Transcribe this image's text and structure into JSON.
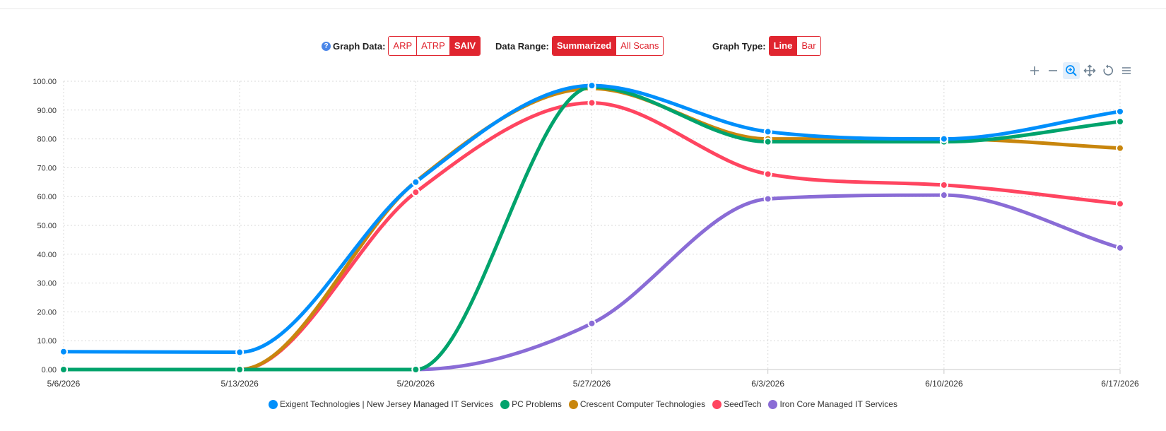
{
  "controls": {
    "graph_data": {
      "label": "Graph Data:",
      "help": "?",
      "options": [
        "ARP",
        "ATRP",
        "SAIV"
      ],
      "active": "SAIV"
    },
    "data_range": {
      "label": "Data Range:",
      "options": [
        "Summarized",
        "All Scans"
      ],
      "active": "Summarized"
    },
    "graph_type": {
      "label": "Graph Type:",
      "options": [
        "Line",
        "Bar"
      ],
      "active": "Line"
    }
  },
  "toolbar": [
    "zoom-in-icon",
    "zoom-out-icon",
    "selection-zoom-icon",
    "pan-icon",
    "reset-icon",
    "menu-icon"
  ],
  "colors": {
    "accent": "#e0252f",
    "grid": "#d9d9d9",
    "tool": "#6e8192",
    "tool_active": "#008ffb"
  },
  "chart_data": {
    "type": "line",
    "title": "",
    "xlabel": "",
    "ylabel": "",
    "categories": [
      "5/6/2026",
      "5/13/2026",
      "5/20/2026",
      "5/27/2026",
      "6/3/2026",
      "6/10/2026",
      "6/17/2026"
    ],
    "y_ticks": [
      "0.00",
      "10.00",
      "20.00",
      "30.00",
      "40.00",
      "50.00",
      "60.00",
      "70.00",
      "80.00",
      "90.00",
      "100.00"
    ],
    "ylim": [
      0,
      100
    ],
    "grid": true,
    "curve": "smooth",
    "legend_position": "bottom",
    "series": [
      {
        "name": "Exigent Technologies | New Jersey Managed IT Services",
        "color": "#008ffb",
        "values": [
          6.2,
          6.0,
          65.0,
          98.5,
          82.5,
          80.0,
          89.5
        ]
      },
      {
        "name": "PC Problems",
        "color": "#00a36c",
        "values": [
          0,
          0,
          0,
          98.0,
          79.0,
          79.0,
          86.0
        ]
      },
      {
        "name": "Crescent Computer Technologies",
        "color": "#c8860d",
        "values": [
          0,
          0,
          65.2,
          97.5,
          80.0,
          80.0,
          76.8
        ]
      },
      {
        "name": "SeedTech",
        "color": "#ff4560",
        "values": [
          0,
          0,
          61.5,
          92.5,
          67.8,
          64.0,
          57.5
        ]
      },
      {
        "name": "Iron Core Managed IT Services",
        "color": "#8a6cd6",
        "values": [
          0,
          0,
          0,
          16.0,
          59.2,
          60.5,
          42.2
        ]
      }
    ]
  }
}
